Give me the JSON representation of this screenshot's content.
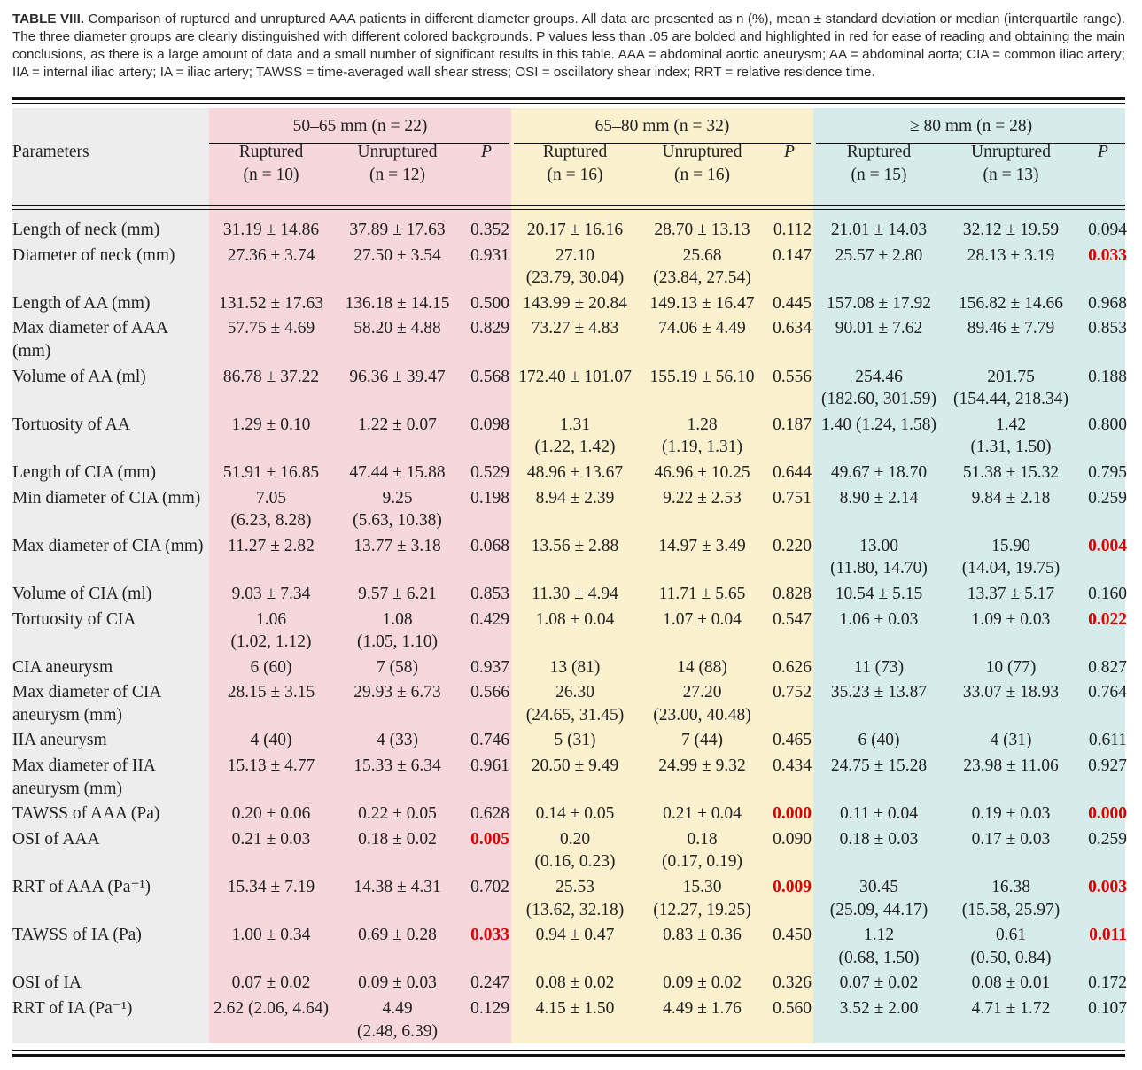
{
  "caption": {
    "label": "TABLE VIII.",
    "text": "Comparison of ruptured and unruptured AAA patients in different diameter groups. All data are presented as n (%), mean ± standard deviation or median (interquartile range). The three diameter groups are clearly distinguished with different colored backgrounds. P values less than .05 are bolded and highlighted in red for ease of reading and obtaining the main conclusions, as there is a large amount of data and a small number of significant results in this table. AAA = abdominal aortic aneurysm; AA = abdominal aorta; CIA = common iliac artery; IIA = internal iliac artery; IA = iliac artery; TAWSS = time-averaged wall shear stress; OSI = oscillatory shear index; RRT = relative residence time."
  },
  "colors": {
    "group1_bg": "#f6d7dc",
    "group2_bg": "#fcf1cf",
    "group3_bg": "#d5ecea",
    "param_bg": "#ededed",
    "significant": "#d40000"
  },
  "header": {
    "groups": [
      "50–65 mm (n = 22)",
      "65–80 mm (n = 32)",
      "≥ 80 mm (n = 28)"
    ],
    "parameters": "Parameters",
    "p": "P",
    "g1": {
      "ruptured": "Ruptured",
      "ruptured_n": "(n = 10)",
      "unruptured": "Unruptured",
      "unruptured_n": "(n = 12)"
    },
    "g2": {
      "ruptured": "Ruptured",
      "ruptured_n": "(n = 16)",
      "unruptured": "Unruptured",
      "unruptured_n": "(n = 16)"
    },
    "g3": {
      "ruptured": "Ruptured",
      "ruptured_n": "(n = 15)",
      "unruptured": "Unruptured",
      "unruptured_n": "(n = 13)"
    }
  },
  "rows": [
    {
      "param": "Length of neck (mm)",
      "c": [
        [
          "31.19 ± 14.86"
        ],
        [
          "37.89 ± 17.63"
        ],
        "0.352",
        [
          "20.17 ± 16.16"
        ],
        [
          "28.70 ± 13.13"
        ],
        "0.112",
        [
          "21.01 ± 14.03"
        ],
        [
          "32.12 ± 19.59"
        ],
        "0.094"
      ],
      "sig": []
    },
    {
      "param": "Diameter of neck (mm)",
      "c": [
        [
          "27.36 ± 3.74"
        ],
        [
          "27.50 ± 3.54"
        ],
        "0.931",
        [
          "27.10",
          "(23.79, 30.04)"
        ],
        [
          "25.68",
          "(23.84, 27.54)"
        ],
        "0.147",
        [
          "25.57 ± 2.80"
        ],
        [
          "28.13 ± 3.19"
        ],
        "0.033"
      ],
      "sig": [
        8
      ]
    },
    {
      "param": "Length of AA (mm)",
      "c": [
        [
          "131.52 ± 17.63"
        ],
        [
          "136.18 ± 14.15"
        ],
        "0.500",
        [
          "143.99 ± 20.84"
        ],
        [
          "149.13 ± 16.47"
        ],
        "0.445",
        [
          "157.08 ± 17.92"
        ],
        [
          "156.82 ± 14.66"
        ],
        "0.968"
      ],
      "sig": []
    },
    {
      "param": "Max diameter of AAA (mm)",
      "c": [
        [
          "57.75 ± 4.69"
        ],
        [
          "58.20 ± 4.88"
        ],
        "0.829",
        [
          "73.27 ± 4.83"
        ],
        [
          "74.06 ± 4.49"
        ],
        "0.634",
        [
          "90.01 ± 7.62"
        ],
        [
          "89.46 ± 7.79"
        ],
        "0.853"
      ],
      "sig": []
    },
    {
      "param": "Volume of AA (ml)",
      "c": [
        [
          "86.78 ± 37.22"
        ],
        [
          "96.36 ± 39.47"
        ],
        "0.568",
        [
          "172.40 ± 101.07"
        ],
        [
          "155.19 ± 56.10"
        ],
        "0.556",
        [
          "254.46",
          "(182.60, 301.59)"
        ],
        [
          "201.75",
          "(154.44, 218.34)"
        ],
        "0.188"
      ],
      "sig": []
    },
    {
      "param": "Tortuosity of AA",
      "c": [
        [
          "1.29 ± 0.10"
        ],
        [
          "1.22 ± 0.07"
        ],
        "0.098",
        [
          "1.31",
          "(1.22, 1.42)"
        ],
        [
          "1.28",
          "(1.19, 1.31)"
        ],
        "0.187",
        [
          "1.40 (1.24, 1.58)"
        ],
        [
          "1.42",
          "(1.31, 1.50)"
        ],
        "0.800"
      ],
      "sig": []
    },
    {
      "param": "Length of CIA (mm)",
      "c": [
        [
          "51.91 ± 16.85"
        ],
        [
          "47.44 ± 15.88"
        ],
        "0.529",
        [
          "48.96 ± 13.67"
        ],
        [
          "46.96 ± 10.25"
        ],
        "0.644",
        [
          "49.67 ± 18.70"
        ],
        [
          "51.38 ± 15.32"
        ],
        "0.795"
      ],
      "sig": []
    },
    {
      "param": "Min diameter of CIA (mm)",
      "c": [
        [
          "7.05",
          "(6.23, 8.28)"
        ],
        [
          "9.25",
          "(5.63, 10.38)"
        ],
        "0.198",
        [
          "8.94 ± 2.39"
        ],
        [
          "9.22 ± 2.53"
        ],
        "0.751",
        [
          "8.90 ± 2.14"
        ],
        [
          "9.84 ± 2.18"
        ],
        "0.259"
      ],
      "sig": []
    },
    {
      "param": "Max diameter of CIA (mm)",
      "c": [
        [
          "11.27 ± 2.82"
        ],
        [
          "13.77 ± 3.18"
        ],
        "0.068",
        [
          "13.56 ± 2.88"
        ],
        [
          "14.97 ± 3.49"
        ],
        "0.220",
        [
          "13.00",
          "(11.80, 14.70)"
        ],
        [
          "15.90",
          "(14.04, 19.75)"
        ],
        "0.004"
      ],
      "sig": [
        8
      ]
    },
    {
      "param": "Volume of CIA (ml)",
      "c": [
        [
          "9.03 ± 7.34"
        ],
        [
          "9.57 ± 6.21"
        ],
        "0.853",
        [
          "11.30 ± 4.94"
        ],
        [
          "11.71 ± 5.65"
        ],
        "0.828",
        [
          "10.54 ± 5.15"
        ],
        [
          "13.37 ± 5.17"
        ],
        "0.160"
      ],
      "sig": []
    },
    {
      "param": "Tortuosity of CIA",
      "c": [
        [
          "1.06",
          "(1.02, 1.12)"
        ],
        [
          "1.08",
          "(1.05, 1.10)"
        ],
        "0.429",
        [
          "1.08 ± 0.04"
        ],
        [
          "1.07 ± 0.04"
        ],
        "0.547",
        [
          "1.06 ± 0.03"
        ],
        [
          "1.09 ± 0.03"
        ],
        "0.022"
      ],
      "sig": [
        8
      ]
    },
    {
      "param": "CIA aneurysm",
      "c": [
        [
          "6 (60)"
        ],
        [
          "7 (58)"
        ],
        "0.937",
        [
          "13 (81)"
        ],
        [
          "14 (88)"
        ],
        "0.626",
        [
          "11 (73)"
        ],
        [
          "10 (77)"
        ],
        "0.827"
      ],
      "sig": []
    },
    {
      "param": "Max diameter of CIA aneurysm (mm)",
      "c": [
        [
          "28.15 ± 3.15"
        ],
        [
          "29.93 ± 6.73"
        ],
        "0.566",
        [
          "26.30",
          "(24.65, 31.45)"
        ],
        [
          "27.20",
          "(23.00, 40.48)"
        ],
        "0.752",
        [
          "35.23 ± 13.87"
        ],
        [
          "33.07 ± 18.93"
        ],
        "0.764"
      ],
      "sig": []
    },
    {
      "param": "IIA aneurysm",
      "c": [
        [
          "4 (40)"
        ],
        [
          "4 (33)"
        ],
        "0.746",
        [
          "5 (31)"
        ],
        [
          "7 (44)"
        ],
        "0.465",
        [
          "6 (40)"
        ],
        [
          "4 (31)"
        ],
        "0.611"
      ],
      "sig": []
    },
    {
      "param": "Max diameter of IIA aneurysm (mm)",
      "c": [
        [
          "15.13 ± 4.77"
        ],
        [
          "15.33 ± 6.34"
        ],
        "0.961",
        [
          "20.50 ± 9.49"
        ],
        [
          "24.99 ± 9.32"
        ],
        "0.434",
        [
          "24.75 ± 15.28"
        ],
        [
          "23.98 ± 11.06"
        ],
        "0.927"
      ],
      "sig": []
    },
    {
      "param": "TAWSS of AAA (Pa)",
      "c": [
        [
          "0.20 ± 0.06"
        ],
        [
          "0.22 ± 0.05"
        ],
        "0.628",
        [
          "0.14 ± 0.05"
        ],
        [
          "0.21 ± 0.04"
        ],
        "0.000",
        [
          "0.11 ± 0.04"
        ],
        [
          "0.19 ± 0.03"
        ],
        "0.000"
      ],
      "sig": [
        5,
        8
      ]
    },
    {
      "param": "OSI of AAA",
      "c": [
        [
          "0.21 ± 0.03"
        ],
        [
          "0.18 ± 0.02"
        ],
        "0.005",
        [
          "0.20",
          "(0.16, 0.23)"
        ],
        [
          "0.18",
          "(0.17, 0.19)"
        ],
        "0.090",
        [
          "0.18 ± 0.03"
        ],
        [
          "0.17 ± 0.03"
        ],
        "0.259"
      ],
      "sig": [
        2
      ]
    },
    {
      "param": "RRT of AAA (Pa⁻¹)",
      "c": [
        [
          "15.34 ± 7.19"
        ],
        [
          "14.38 ± 4.31"
        ],
        "0.702",
        [
          "25.53",
          "(13.62, 32.18)"
        ],
        [
          "15.30",
          "(12.27, 19.25)"
        ],
        "0.009",
        [
          "30.45",
          "(25.09, 44.17)"
        ],
        [
          "16.38",
          "(15.58, 25.97)"
        ],
        "0.003"
      ],
      "sig": [
        5,
        8
      ]
    },
    {
      "param": "TAWSS of IA (Pa)",
      "c": [
        [
          "1.00 ± 0.34"
        ],
        [
          "0.69 ± 0.28"
        ],
        "0.033",
        [
          "0.94 ± 0.47"
        ],
        [
          "0.83 ± 0.36"
        ],
        "0.450",
        [
          "1.12",
          "(0.68, 1.50)"
        ],
        [
          "0.61",
          "(0.50, 0.84)"
        ],
        "0.011"
      ],
      "sig": [
        2,
        8
      ]
    },
    {
      "param": "OSI of IA",
      "c": [
        [
          "0.07 ± 0.02"
        ],
        [
          "0.09 ± 0.03"
        ],
        "0.247",
        [
          "0.08 ± 0.02"
        ],
        [
          "0.09 ± 0.02"
        ],
        "0.326",
        [
          "0.07 ± 0.02"
        ],
        [
          "0.08 ± 0.01"
        ],
        "0.172"
      ],
      "sig": []
    },
    {
      "param": "RRT of IA (Pa⁻¹)",
      "c": [
        [
          "2.62 (2.06, 4.64)"
        ],
        [
          "4.49",
          "(2.48, 6.39)"
        ],
        "0.129",
        [
          "4.15 ± 1.50"
        ],
        [
          "4.49 ± 1.76"
        ],
        "0.560",
        [
          "3.52 ± 2.00"
        ],
        [
          "4.71 ± 1.72"
        ],
        "0.107"
      ],
      "sig": []
    }
  ]
}
